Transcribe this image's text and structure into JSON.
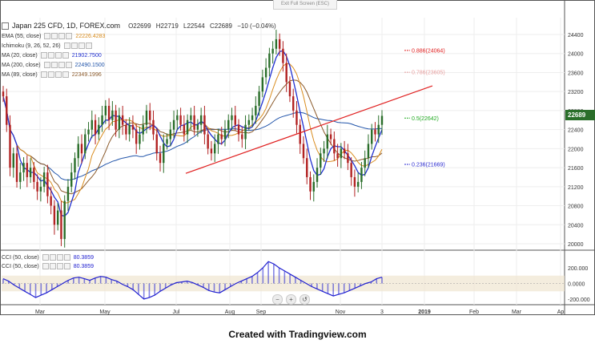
{
  "header": {
    "title": "Japan 225 CFD, 1D, FOREX.com",
    "ohlc": [
      "O22699",
      "H22719",
      "L22544",
      "C22689",
      "−10 (−0.04%)"
    ],
    "exit_fullscreen": "Exit Full Screen (ESC)"
  },
  "indicators": [
    {
      "label": "EMA (55, close)",
      "value": "22226.4283",
      "color": "#d98c1e"
    },
    {
      "label": "Ichimoku (9, 26, 52, 26)",
      "value": "",
      "color": "#2a6e9e"
    },
    {
      "label": "MA (20, close)",
      "value": "21902.7500",
      "color": "#1f2fd0"
    },
    {
      "label": "MA (200, close)",
      "value": "22490.1500",
      "color": "#2255aa"
    },
    {
      "label": "MA (89, close)",
      "value": "22349.1996",
      "color": "#8b5a2b"
    }
  ],
  "cci_legend": [
    {
      "label": "CCI (50, close)",
      "value": "80.3859"
    },
    {
      "label": "CCI (50, close)",
      "value": "80.3859"
    }
  ],
  "footer": "Created with Tradingview.com",
  "current_price": "22689",
  "nav_icons": [
    "minus-icon",
    "plus-icon",
    "reset-icon"
  ],
  "colors": {
    "up": "#2a6e2a",
    "down": "#b22222",
    "trendline": "#e02020",
    "cci_fill": "#2020d0",
    "cci_band": "#f0e6d0"
  },
  "chart_data": {
    "type": "candlestick",
    "symbol": "Japan 225 CFD",
    "ylim": [
      19800,
      24600
    ],
    "y_ticks": [
      "24400",
      "24000",
      "23600",
      "23200",
      "22800",
      "22400",
      "22000",
      "21600",
      "21200",
      "20800",
      "20400",
      "20000"
    ],
    "x_ticks": [
      "Mar",
      "May",
      "Jul",
      "Aug",
      "Sep",
      "Nov",
      "3",
      "2019",
      "Feb",
      "Mar",
      "Ap"
    ],
    "x_tick_bold": [
      false,
      false,
      false,
      false,
      false,
      false,
      false,
      true,
      false,
      false,
      false
    ],
    "fibonacci": [
      {
        "label": "0.886(24064)",
        "value": 24064,
        "color": "#e02020"
      },
      {
        "label": "0.786(23605)",
        "value": 23605,
        "color": "#e8a0a0"
      },
      {
        "label": "0.5(22642)",
        "value": 22642,
        "color": "#22aa22"
      },
      {
        "label": "0.236(21669)",
        "value": 21669,
        "color": "#2a2ad0"
      }
    ],
    "close_series": [
      23100,
      22500,
      21600,
      21900,
      21300,
      21500,
      21700,
      21400,
      21600,
      21300,
      21100,
      21200,
      21500,
      21000,
      20800,
      20400,
      20700,
      20100,
      20900,
      21200,
      21500,
      21800,
      22100,
      21900,
      22300,
      22400,
      22600,
      22300,
      22500,
      22700,
      22900,
      22600,
      22800,
      22400,
      22700,
      22500,
      22300,
      22500,
      22400,
      22100,
      22300,
      22500,
      22800,
      22600,
      22300,
      21900,
      21700,
      22100,
      22200,
      22400,
      22600,
      22700,
      22500,
      22300,
      22600,
      22700,
      22400,
      22500,
      22700,
      22300,
      22000,
      21900,
      22100,
      22300,
      22200,
      22400,
      22600,
      22700,
      22500,
      22300,
      22200,
      22500,
      22600,
      22700,
      22900,
      23200,
      23500,
      23700,
      24000,
      24100,
      24300,
      24100,
      23800,
      23400,
      23100,
      22800,
      22500,
      22100,
      21800,
      21400,
      21100,
      21300,
      21600,
      21900,
      22000,
      22300,
      22200,
      21900,
      21800,
      22000,
      21900,
      21700,
      21400,
      21200,
      21300,
      21600,
      21800,
      22100,
      22400,
      22300,
      22500,
      22689
    ],
    "cci_ylim": [
      -200,
      200
    ],
    "cci_ticks": [
      "200.000",
      "0.0000",
      "-200.000"
    ],
    "cci_series": [
      60,
      30,
      -20,
      -60,
      -100,
      -140,
      -180,
      -150,
      -120,
      -80,
      -40,
      0,
      40,
      70,
      80,
      60,
      40,
      70,
      90,
      80,
      50,
      30,
      -10,
      -40,
      -80,
      -140,
      -200,
      -180,
      -150,
      -100,
      -60,
      -20,
      10,
      20,
      30,
      10,
      -20,
      -50,
      -90,
      -110,
      -120,
      -80,
      -40,
      0,
      30,
      60,
      90,
      140,
      200,
      280,
      250,
      200,
      160,
      120,
      80,
      40,
      0,
      -40,
      -70,
      -100,
      -130,
      -160,
      -140,
      -120,
      -90,
      -60,
      -30,
      0,
      20,
      60,
      80
    ]
  }
}
